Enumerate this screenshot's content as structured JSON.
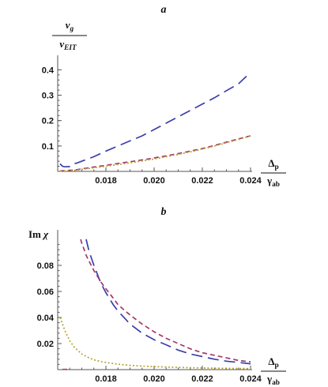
{
  "chart_data": [
    {
      "type": "line",
      "title": "a",
      "ylabel": {
        "top_main": "v",
        "top_sub": "g",
        "bottom_main": "v",
        "bottom_sub": "EIT"
      },
      "xlabel": {
        "top_main": "Δ",
        "top_sub": "p",
        "bottom_main": "γ",
        "bottom_sub": "ab"
      },
      "xlim": [
        0.016,
        0.024
      ],
      "ylim": [
        0,
        0.42
      ],
      "xticks": [
        "0.018",
        "0.020",
        "0.022",
        "0.024"
      ],
      "yticks": [
        "0.1",
        "0.2",
        "0.3",
        "0.4"
      ],
      "series": [
        {
          "color": "#3b3fa8",
          "dash": "long",
          "x": [
            0.0161,
            0.0162,
            0.0163,
            0.0165,
            0.0166,
            0.0167,
            0.0168,
            0.017,
            0.0175,
            0.018,
            0.0185,
            0.019,
            0.0195,
            0.02,
            0.0205,
            0.021,
            0.0215,
            0.022,
            0.0225,
            0.023,
            0.0235,
            0.024
          ],
          "y": [
            0.03,
            0.02,
            0.018,
            0.019,
            0.024,
            0.031,
            0.033,
            0.04,
            0.058,
            0.08,
            0.1,
            0.12,
            0.14,
            0.165,
            0.19,
            0.215,
            0.24,
            0.265,
            0.29,
            0.318,
            0.345,
            0.39
          ]
        },
        {
          "color": "#a23a6a",
          "dash": "medium",
          "x": [
            0.0161,
            0.0165,
            0.0168,
            0.017,
            0.0175,
            0.018,
            0.0185,
            0.019,
            0.0195,
            0.02,
            0.0205,
            0.021,
            0.0215,
            0.022,
            0.0225,
            0.023,
            0.0235,
            0.024
          ],
          "y": [
            0.002,
            0.004,
            0.007,
            0.01,
            0.017,
            0.024,
            0.031,
            0.038,
            0.045,
            0.053,
            0.061,
            0.07,
            0.08,
            0.09,
            0.102,
            0.115,
            0.128,
            0.14
          ]
        },
        {
          "color": "#b5a32e",
          "dash": "dotted",
          "x": [
            0.0161,
            0.0165,
            0.0168,
            0.017,
            0.0175,
            0.018,
            0.0185,
            0.019,
            0.0195,
            0.02,
            0.0205,
            0.021,
            0.0215,
            0.022,
            0.0225,
            0.023,
            0.0235,
            0.024
          ],
          "y": [
            0.001,
            0.003,
            0.005,
            0.008,
            0.014,
            0.02,
            0.027,
            0.034,
            0.041,
            0.049,
            0.058,
            0.067,
            0.077,
            0.088,
            0.1,
            0.113,
            0.126,
            0.14
          ]
        }
      ]
    },
    {
      "type": "line",
      "title": "b",
      "ylabel": {
        "main": "Im",
        "greek": "χ"
      },
      "xlabel": {
        "top_main": "Δ",
        "top_sub": "p",
        "bottom_main": "γ",
        "bottom_sub": "ab"
      },
      "xlim": [
        0.016,
        0.024
      ],
      "ylim": [
        0,
        0.1
      ],
      "xticks": [
        "0.018",
        "0.020",
        "0.022",
        "0.024"
      ],
      "yticks": [
        "0.02",
        "0.04",
        "0.06",
        "0.08"
      ],
      "series": [
        {
          "color": "#3b3fa8",
          "dash": "long",
          "x": [
            0.01718,
            0.0173,
            0.0175,
            0.0178,
            0.018,
            0.0183,
            0.0185,
            0.0188,
            0.019,
            0.0195,
            0.02,
            0.0205,
            0.021,
            0.0215,
            0.022,
            0.0225,
            0.023,
            0.0235,
            0.024
          ],
          "y": [
            0.1,
            0.091,
            0.08,
            0.066,
            0.059,
            0.05,
            0.045,
            0.039,
            0.035,
            0.028,
            0.023,
            0.019,
            0.015,
            0.012,
            0.01,
            0.008,
            0.0065,
            0.0055,
            0.0045
          ]
        },
        {
          "color": "#a23a6a",
          "dash": "medium",
          "x": [
            0.01695,
            0.017,
            0.0172,
            0.0175,
            0.0178,
            0.018,
            0.0183,
            0.0185,
            0.0188,
            0.019,
            0.0195,
            0.02,
            0.0205,
            0.021,
            0.0215,
            0.022,
            0.0225,
            0.023,
            0.0235,
            0.024
          ],
          "y": [
            0.1,
            0.097,
            0.087,
            0.076,
            0.067,
            0.062,
            0.055,
            0.05,
            0.045,
            0.042,
            0.035,
            0.029,
            0.024,
            0.02,
            0.016,
            0.013,
            0.011,
            0.009,
            0.007,
            0.006
          ]
        },
        {
          "color": "#b5a32e",
          "dash": "dotted",
          "x": [
            0.0161,
            0.0162,
            0.0163,
            0.0165,
            0.0167,
            0.017,
            0.0173,
            0.0175,
            0.0178,
            0.018,
            0.0185,
            0.019,
            0.0195,
            0.02,
            0.021,
            0.022,
            0.023,
            0.024
          ],
          "y": [
            0.04,
            0.035,
            0.03,
            0.022,
            0.017,
            0.012,
            0.009,
            0.0075,
            0.0062,
            0.0055,
            0.0042,
            0.0033,
            0.0027,
            0.0023,
            0.0017,
            0.0013,
            0.001,
            0.0008
          ]
        },
        {
          "color": "#a23a6a",
          "dash": "medium",
          "x": [
            0.0162,
            0.0164
          ],
          "y": [
            0.0002,
            0.0002
          ]
        }
      ]
    }
  ]
}
